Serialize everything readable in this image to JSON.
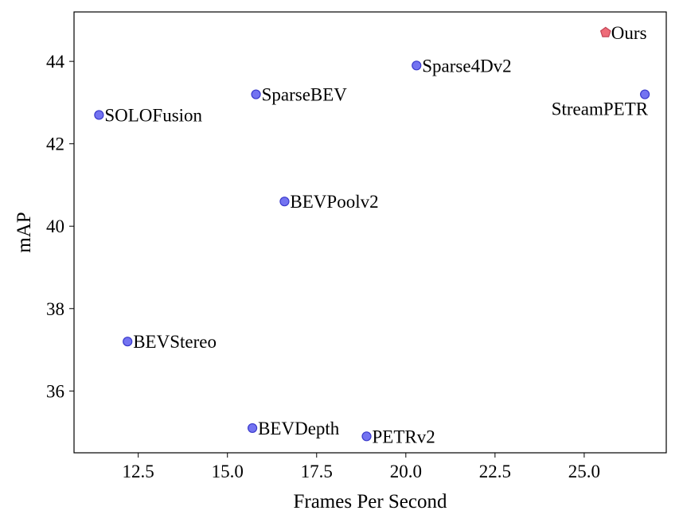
{
  "chart_data": {
    "type": "scatter",
    "title": "",
    "xlabel": "Frames Per Second",
    "ylabel": "mAP",
    "xlim": [
      10.7,
      27.3
    ],
    "ylim": [
      34.5,
      45.2
    ],
    "xticks": [
      12.5,
      15.0,
      17.5,
      20.0,
      22.5,
      25.0
    ],
    "xtick_labels": [
      "12.5",
      "15.0",
      "17.5",
      "20.0",
      "22.5",
      "25.0"
    ],
    "yticks": [
      36,
      38,
      40,
      42,
      44
    ],
    "ytick_labels": [
      "36",
      "38",
      "40",
      "42",
      "44"
    ],
    "grid": false,
    "legend": "none",
    "colors": {
      "baseline": "#6b6bf0",
      "baseline_edge": "#3a3acb",
      "ours": "#ee6b78",
      "ours_edge": "#c24455"
    },
    "points": [
      {
        "label": "SOLOFusion",
        "x": 11.4,
        "y": 42.7,
        "marker": "circle",
        "label_pos": "right"
      },
      {
        "label": "SparseBEV",
        "x": 15.8,
        "y": 43.2,
        "marker": "circle",
        "label_pos": "right"
      },
      {
        "label": "Sparse4Dv2",
        "x": 20.3,
        "y": 43.9,
        "marker": "circle",
        "label_pos": "right"
      },
      {
        "label": "StreamPETR",
        "x": 26.7,
        "y": 43.2,
        "marker": "circle",
        "label_pos": "below-left"
      },
      {
        "label": "BEVPoolv2",
        "x": 16.6,
        "y": 40.6,
        "marker": "circle",
        "label_pos": "right"
      },
      {
        "label": "BEVStereo",
        "x": 12.2,
        "y": 37.2,
        "marker": "circle",
        "label_pos": "right"
      },
      {
        "label": "BEVDepth",
        "x": 15.7,
        "y": 35.1,
        "marker": "circle",
        "label_pos": "right"
      },
      {
        "label": "PETRv2",
        "x": 18.9,
        "y": 34.9,
        "marker": "circle",
        "label_pos": "right"
      },
      {
        "label": "Ours",
        "x": 25.6,
        "y": 44.7,
        "marker": "pentagon",
        "label_pos": "right"
      }
    ]
  }
}
